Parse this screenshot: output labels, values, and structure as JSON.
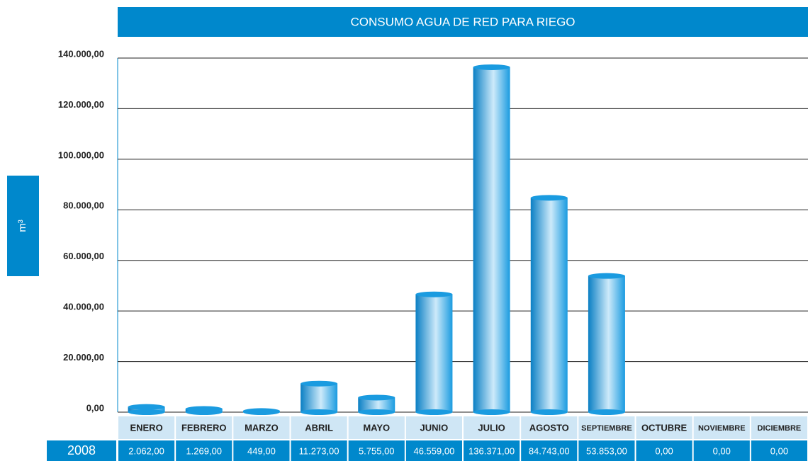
{
  "chart_data": {
    "type": "bar",
    "title": "CONSUMO AGUA DE RED PARA RIEGO",
    "y_label": "m³",
    "categories": [
      "ENERO",
      "FEBRERO",
      "MARZO",
      "ABRIL",
      "MAYO",
      "JUNIO",
      "JULIO",
      "AGOSTO",
      "SEPTIEMBRE",
      "OCTUBRE",
      "NOVIEMBRE",
      "DICIEMBRE"
    ],
    "series": [
      {
        "name": "2008",
        "color": "#1a9be0",
        "values": [
          2062,
          1269,
          449,
          11273,
          5755,
          46559,
          136371,
          84743,
          53853,
          0,
          0,
          0
        ],
        "value_labels": [
          "2.062,00",
          "1.269,00",
          "449,00",
          "11.273,00",
          "5.755,00",
          "46.559,00",
          "136.371,00",
          "84.743,00",
          "53.853,00",
          "0,00",
          "0,00",
          "0,00"
        ]
      }
    ],
    "ylim": [
      0,
      140000
    ],
    "yticks": [
      {
        "value": 0,
        "label": "0,00"
      },
      {
        "value": 20000,
        "label": "20.000,00"
      },
      {
        "value": 40000,
        "label": "40.000,00"
      },
      {
        "value": 60000,
        "label": "60.000,00"
      },
      {
        "value": 80000,
        "label": "80.000,00"
      },
      {
        "value": 100000,
        "label": "100.000,00"
      },
      {
        "value": 120000,
        "label": "120.000,00"
      },
      {
        "value": 140000,
        "label": "140.000,00"
      }
    ],
    "grid": true
  }
}
